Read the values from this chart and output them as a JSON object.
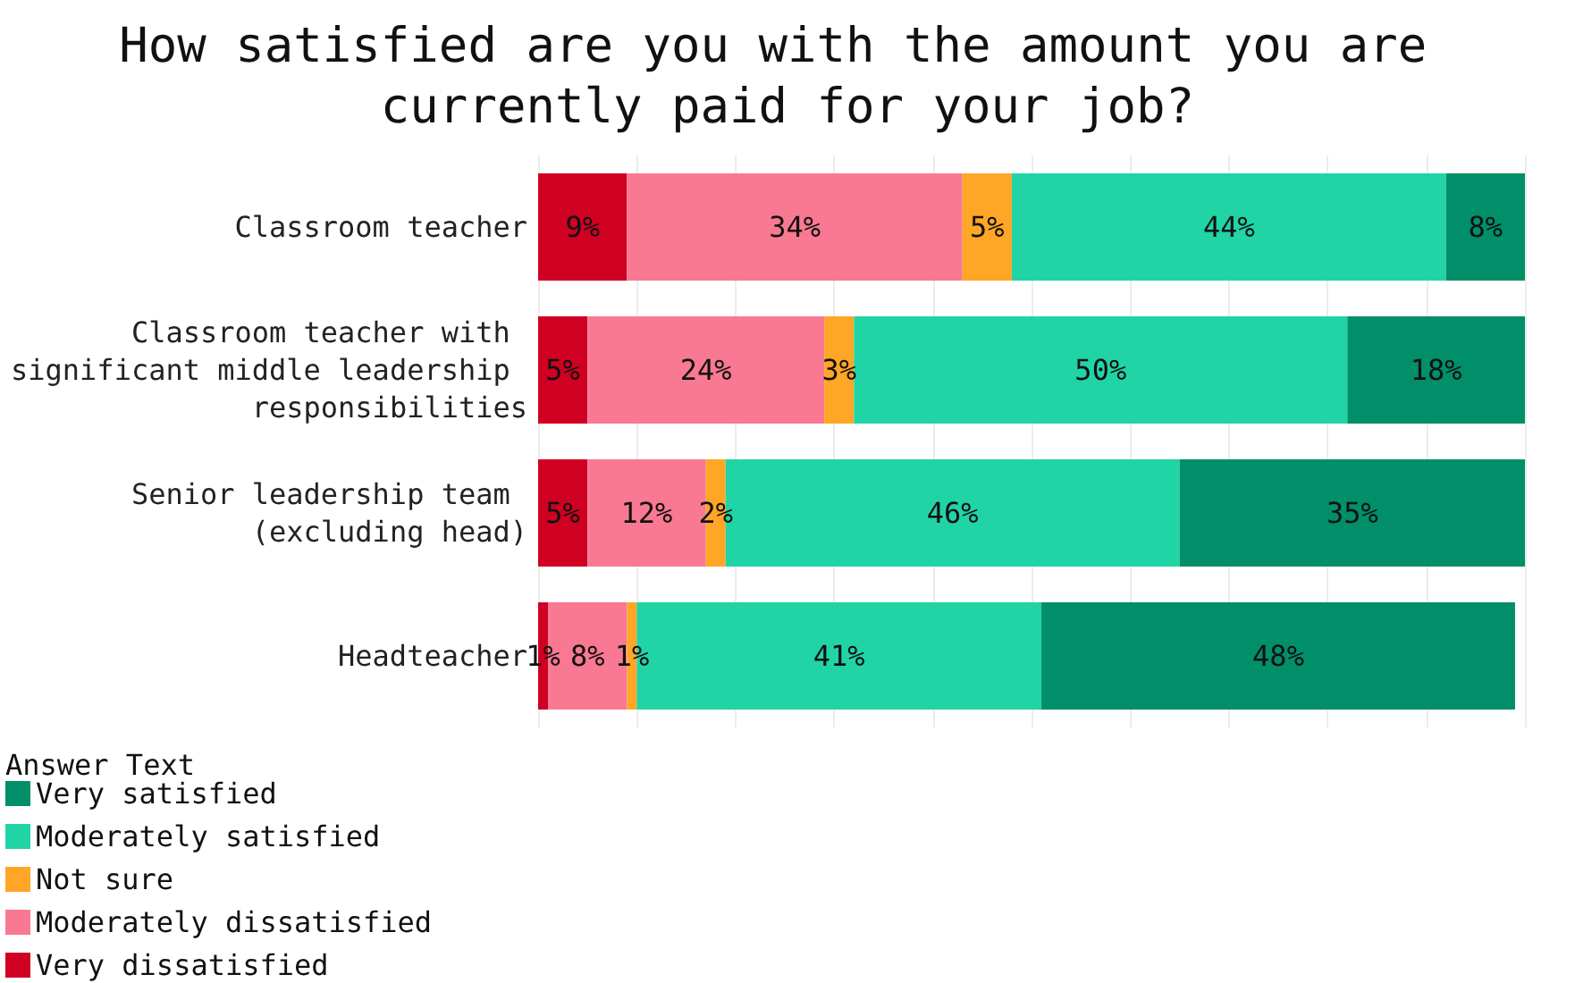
{
  "chart_data": {
    "type": "bar",
    "orientation": "horizontal",
    "stacked": true,
    "title": "How satisfied are you with the amount you are currently paid for your job?",
    "legend_title": "Answer Text",
    "categories": [
      "Classroom teacher",
      "Classroom teacher with significant middle leadership responsibilities",
      "Senior leadership team (excluding head)",
      "Headteacher"
    ],
    "series": [
      {
        "name": "Very dissatisfied",
        "color": "#d00023",
        "values": [
          9,
          5,
          5,
          1
        ],
        "value_labels": [
          "9%",
          "5%",
          "5%",
          "1%"
        ]
      },
      {
        "name": "Moderately dissatisfied",
        "color": "#f87991",
        "values": [
          34,
          24,
          12,
          8
        ],
        "value_labels": [
          "34%",
          "24%",
          "12%",
          "8%"
        ]
      },
      {
        "name": "Not sure",
        "color": "#ffa626",
        "values": [
          5,
          3,
          2,
          1
        ],
        "value_labels": [
          "5%",
          "3%",
          "2%",
          "1%"
        ]
      },
      {
        "name": "Moderately satisfied",
        "color": "#20d4a6",
        "values": [
          44,
          50,
          46,
          41
        ],
        "value_labels": [
          "44%",
          "50%",
          "46%",
          "41%"
        ]
      },
      {
        "name": "Very satisfied",
        "color": "#008f69",
        "values": [
          8,
          18,
          35,
          48
        ],
        "value_labels": [
          "8%",
          "18%",
          "35%",
          "48%"
        ]
      }
    ],
    "xlim": [
      0,
      100
    ],
    "xticks": [
      {
        "value": 0,
        "label": null
      },
      {
        "value": 10,
        "label": null
      },
      {
        "value": 20,
        "label": null
      },
      {
        "value": 30,
        "label": null
      },
      {
        "value": 40,
        "label": null
      },
      {
        "value": 50,
        "label": null
      },
      {
        "value": 60,
        "label": null
      },
      {
        "value": 70,
        "label": null
      },
      {
        "value": 80,
        "label": null
      },
      {
        "value": 90,
        "label": null
      },
      {
        "value": 100,
        "label": null
      }
    ],
    "grid": "x",
    "legend": "bottom left",
    "tick_labels": "y"
  }
}
